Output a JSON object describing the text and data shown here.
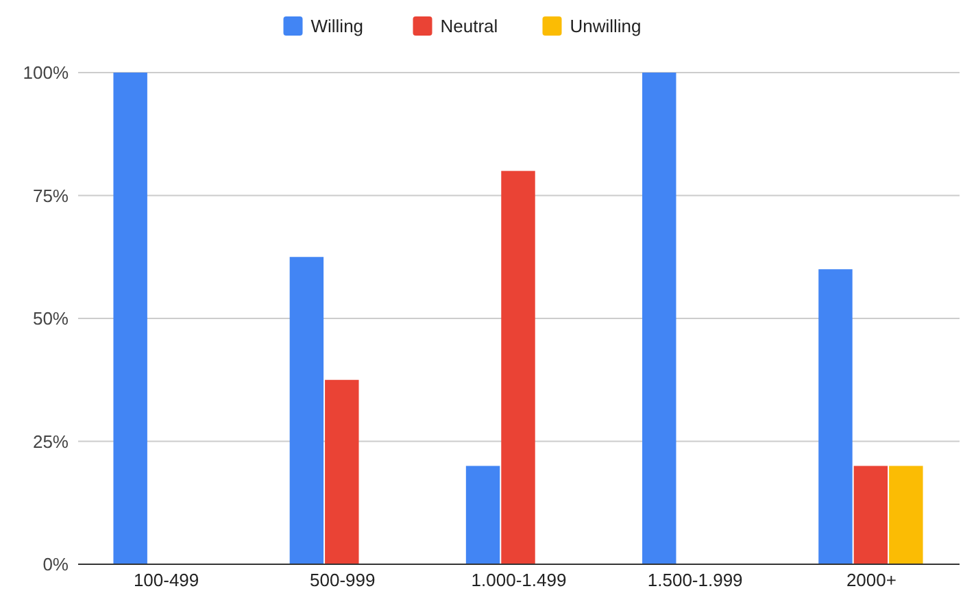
{
  "chart_data": {
    "type": "bar",
    "categories": [
      "100-499",
      "500-999",
      "1.000-1.499",
      "1.500-1.999",
      "2000+"
    ],
    "series": [
      {
        "name": "Willing",
        "color": "#4285f4",
        "values": [
          100,
          62.5,
          20,
          100,
          60
        ]
      },
      {
        "name": "Neutral",
        "color": "#ea4335",
        "values": [
          0,
          37.5,
          80,
          0,
          20
        ]
      },
      {
        "name": "Unwilling",
        "color": "#fbbc04",
        "values": [
          0,
          0,
          0,
          0,
          20
        ]
      }
    ],
    "ylim": [
      0,
      100
    ],
    "yticks": [
      {
        "value": 0,
        "label": "0%"
      },
      {
        "value": 25,
        "label": "25%"
      },
      {
        "value": 50,
        "label": "50%"
      },
      {
        "value": 75,
        "label": "75%"
      },
      {
        "value": 100,
        "label": "100%"
      }
    ],
    "grid": "y",
    "legend": "top"
  }
}
